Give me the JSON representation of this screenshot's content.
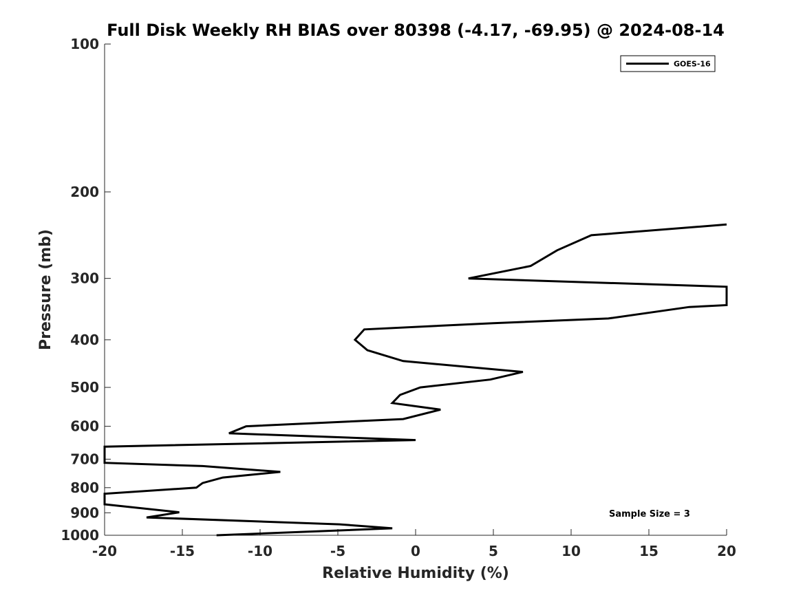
{
  "chart_data": {
    "type": "line",
    "title": "Full Disk Weekly RH BIAS over 80398 (-4.17, -69.95) @ 2024-08-14",
    "xlabel": "Relative Humidity (%)",
    "ylabel": "Pressure (mb)",
    "xlim": [
      -20,
      20
    ],
    "ylim": [
      100,
      1000
    ],
    "yscale": "log",
    "y_reversed": true,
    "grid": false,
    "legend_position": "top-right",
    "x_ticks": [
      -20,
      -15,
      -10,
      -5,
      0,
      5,
      10,
      15,
      20
    ],
    "x_tick_labels": [
      "-20",
      "-15",
      "-10",
      "-5",
      "0",
      "5",
      "10",
      "15",
      "20"
    ],
    "y_ticks": [
      100,
      200,
      300,
      400,
      500,
      600,
      700,
      800,
      900,
      1000
    ],
    "y_tick_labels": [
      "100",
      "200",
      "300",
      "400",
      "500",
      "600",
      "700",
      "800",
      "900",
      "1000"
    ],
    "annotation": "Sample Size = 3",
    "series": [
      {
        "name": "GOES-16",
        "color": "#000000",
        "points": [
          [
            20.0,
            233
          ],
          [
            11.3,
            245
          ],
          [
            9.1,
            263
          ],
          [
            7.4,
            283
          ],
          [
            3.4,
            300
          ],
          [
            20.0,
            312
          ],
          [
            20.0,
            340
          ],
          [
            17.6,
            343
          ],
          [
            12.4,
            362
          ],
          [
            5.0,
            370
          ],
          [
            -3.3,
            381
          ],
          [
            -3.9,
            400
          ],
          [
            -3.1,
            420
          ],
          [
            -0.8,
            442
          ],
          [
            6.9,
            465
          ],
          [
            4.8,
            482
          ],
          [
            0.3,
            500
          ],
          [
            -1.0,
            518
          ],
          [
            -1.5,
            538
          ],
          [
            1.6,
            555
          ],
          [
            -0.8,
            580
          ],
          [
            -10.9,
            600
          ],
          [
            -12.0,
            620
          ],
          [
            0.0,
            640
          ],
          [
            -20.0,
            660
          ],
          [
            -20.0,
            712
          ],
          [
            -13.7,
            723
          ],
          [
            -8.7,
            743
          ],
          [
            -12.4,
            763
          ],
          [
            -13.7,
            783
          ],
          [
            -14.1,
            800
          ],
          [
            -20.0,
            823
          ],
          [
            -20.0,
            865
          ],
          [
            -15.2,
            898
          ],
          [
            -17.3,
            920
          ],
          [
            -4.9,
            950
          ],
          [
            -1.5,
            968
          ],
          [
            -12.8,
            1000
          ]
        ]
      }
    ]
  }
}
